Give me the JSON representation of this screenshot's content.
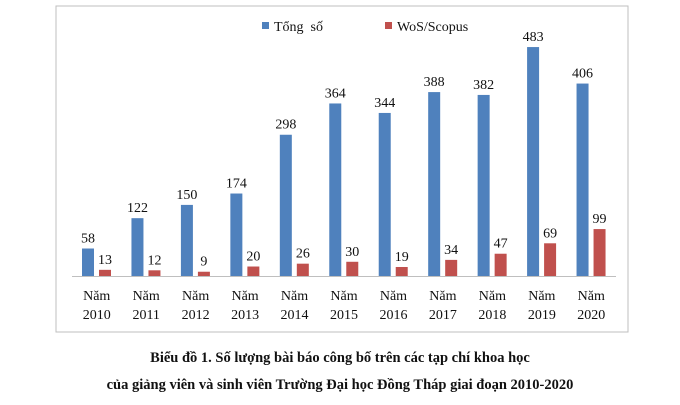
{
  "chart_data": {
    "type": "bar",
    "categories": [
      [
        "Năm",
        "2010"
      ],
      [
        "Năm",
        "2011"
      ],
      [
        "Năm",
        "2012"
      ],
      [
        "Năm",
        "2013"
      ],
      [
        "Năm",
        "2014"
      ],
      [
        "Năm",
        "2015"
      ],
      [
        "Năm",
        "2016"
      ],
      [
        "Năm",
        "2017"
      ],
      [
        "Năm",
        "2018"
      ],
      [
        "Năm",
        "2019"
      ],
      [
        "Năm",
        "2020"
      ]
    ],
    "series": [
      {
        "name": "Tổng  số",
        "color": "#4f81bd",
        "values": [
          58,
          122,
          150,
          174,
          298,
          364,
          344,
          388,
          382,
          483,
          406
        ]
      },
      {
        "name": "WoS/Scopus",
        "color": "#c0504d",
        "values": [
          13,
          12,
          9,
          20,
          26,
          30,
          19,
          34,
          47,
          69,
          99
        ]
      }
    ],
    "ylim": [
      0,
      500
    ],
    "grid": false,
    "legend_position": "top-center",
    "data_labels": true
  },
  "caption": {
    "line1": "Biểu đồ 1. Số lượng bài báo công bố trên các tạp chí khoa học",
    "line2": "của giảng viên và sinh viên Trường Đại học Đồng Tháp giai đoạn 2010-2020"
  }
}
